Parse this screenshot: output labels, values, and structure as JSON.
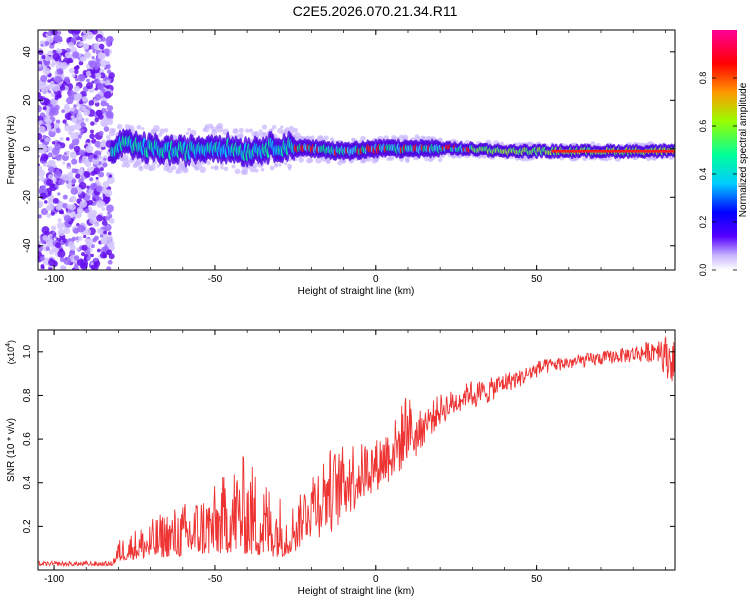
{
  "title": "C2E5.2026.070.21.34.R11",
  "chart_data": [
    {
      "type": "heatmap",
      "name": "spectrogram",
      "xlabel": "Height of straight line (km)",
      "ylabel": "Frequency (Hz)",
      "xlim": [
        -105,
        93
      ],
      "ylim": [
        -50,
        49
      ],
      "xticks": [
        -100,
        -50,
        0,
        50
      ],
      "yticks": [
        40,
        20,
        0,
        -20,
        -40
      ],
      "colorbar": {
        "label": "Normalized spectral amplitude",
        "range": [
          0.0,
          1.0
        ],
        "ticks": [
          0.0,
          0.2,
          0.4,
          0.6,
          0.8
        ],
        "colormap": [
          "#ffffff",
          "#5500ff",
          "#0000ff",
          "#00ccff",
          "#00ff66",
          "#ccff00",
          "#ff8800",
          "#ff0000",
          "#ff0099"
        ]
      },
      "description_points": {
        "noise_region_x": [
          -105,
          -82
        ],
        "signal_center_freq_hz": [
          [
            -80,
            2
          ],
          [
            -70,
            0
          ],
          [
            -60,
            -1
          ],
          [
            -50,
            1
          ],
          [
            -40,
            -1
          ],
          [
            -30,
            1
          ],
          [
            -20,
            0
          ],
          [
            -10,
            -1
          ],
          [
            0,
            0
          ],
          [
            10,
            0
          ],
          [
            20,
            0
          ],
          [
            30,
            0
          ],
          [
            40,
            -1
          ],
          [
            50,
            -1
          ],
          [
            60,
            -1
          ],
          [
            70,
            -1
          ],
          [
            80,
            -1
          ],
          [
            93,
            -1
          ]
        ]
      }
    },
    {
      "type": "line",
      "name": "snr",
      "xlabel": "Height of straight line (km)",
      "ylabel": "SNR (10 * v/v)",
      "multiplier": "(x10",
      "multiplier_exp": "4",
      "multiplier_close": ")",
      "xlim": [
        -105,
        93
      ],
      "ylim": [
        0,
        1.1
      ],
      "xticks": [
        -100,
        -50,
        0,
        50
      ],
      "yticks": [
        0.2,
        0.4,
        0.6,
        0.8,
        1.0
      ],
      "color": "#ee3333",
      "envelope": {
        "x": [
          -105,
          -82,
          -80,
          -75,
          -70,
          -65,
          -60,
          -55,
          -50,
          -45,
          -42,
          -40,
          -35,
          -30,
          -27,
          -24,
          -22,
          -20,
          -17,
          -15,
          -12,
          -10,
          -8,
          -5,
          -3,
          0,
          3,
          5,
          7,
          9,
          10,
          12,
          15,
          20,
          25,
          30,
          35,
          40,
          45,
          50,
          55,
          60,
          65,
          70,
          75,
          80,
          85,
          88,
          90,
          93
        ],
        "base": [
          0.02,
          0.02,
          0.04,
          0.05,
          0.05,
          0.06,
          0.06,
          0.07,
          0.07,
          0.08,
          0.08,
          0.07,
          0.06,
          0.06,
          0.07,
          0.15,
          0.2,
          0.22,
          0.24,
          0.26,
          0.28,
          0.32,
          0.34,
          0.36,
          0.4,
          0.42,
          0.45,
          0.48,
          0.5,
          0.55,
          0.6,
          0.55,
          0.62,
          0.7,
          0.74,
          0.8,
          0.82,
          0.86,
          0.88,
          0.92,
          0.94,
          0.95,
          0.96,
          0.97,
          0.98,
          0.99,
          1.0,
          1.02,
          0.98,
          0.95
        ],
        "amp": [
          0.02,
          0.02,
          0.1,
          0.14,
          0.18,
          0.22,
          0.25,
          0.28,
          0.32,
          0.4,
          0.45,
          0.45,
          0.38,
          0.3,
          0.22,
          0.2,
          0.22,
          0.28,
          0.3,
          0.34,
          0.3,
          0.28,
          0.3,
          0.24,
          0.22,
          0.2,
          0.22,
          0.24,
          0.22,
          0.3,
          0.25,
          0.18,
          0.14,
          0.12,
          0.1,
          0.08,
          0.07,
          0.06,
          0.05,
          0.05,
          0.04,
          0.04,
          0.04,
          0.04,
          0.04,
          0.05,
          0.06,
          0.08,
          0.12,
          0.12
        ]
      }
    }
  ]
}
